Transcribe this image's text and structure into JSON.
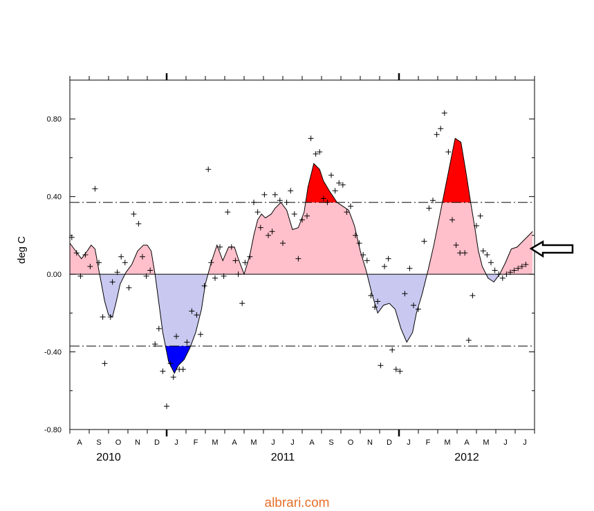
{
  "chart_data": {
    "type": "area",
    "ylabel": "deg C",
    "ylim": [
      -0.8,
      1.0
    ],
    "ytick_values": [
      -0.8,
      -0.4,
      0.0,
      0.4,
      0.8
    ],
    "ytick_labels": [
      "-0.80",
      "-0.40",
      "0.00",
      "0.40",
      "0.80"
    ],
    "x_unit": "month",
    "xlim": [
      0,
      24
    ],
    "months": [
      "A",
      "S",
      "O",
      "N",
      "D",
      "J",
      "F",
      "M",
      "A",
      "M",
      "J",
      "J",
      "A",
      "S",
      "O",
      "N",
      "D",
      "J",
      "F",
      "M",
      "A",
      "M",
      "J",
      "J"
    ],
    "years": [
      {
        "label": "2010",
        "at": 2.0
      },
      {
        "label": "2011",
        "at": 11.0
      },
      {
        "label": "2012",
        "at": 20.5
      }
    ],
    "thresholds": [
      0.37,
      -0.37
    ],
    "grid": false,
    "colors": {
      "warm_fill": "#ffc0cb",
      "cool_fill": "#c8c8f0",
      "strong_warm": "#ff0000",
      "strong_cool": "#0000ff",
      "line": "#000000"
    },
    "smoothed_series": {
      "x": [
        0.0,
        0.3,
        0.6,
        0.9,
        1.1,
        1.3,
        1.5,
        1.8,
        2.0,
        2.2,
        2.4,
        2.6,
        2.9,
        3.2,
        3.5,
        3.8,
        4.0,
        4.2,
        4.4,
        4.6,
        4.8,
        5.1,
        5.4,
        5.6,
        5.9,
        6.2,
        6.5,
        6.8,
        7.0,
        7.3,
        7.6,
        7.9,
        8.2,
        8.5,
        8.7,
        9.0,
        9.3,
        9.5,
        9.7,
        9.9,
        10.1,
        10.4,
        10.6,
        10.9,
        11.2,
        11.5,
        11.8,
        12.1,
        12.3,
        12.6,
        12.9,
        13.1,
        13.4,
        13.6,
        13.8,
        14.1,
        14.4,
        14.7,
        15.0,
        15.3,
        15.6,
        15.9,
        16.2,
        16.5,
        16.8,
        17.1,
        17.4,
        17.7,
        17.9,
        18.2,
        18.5,
        18.8,
        19.1,
        19.4,
        19.7,
        19.9,
        20.2,
        20.5,
        20.7,
        20.9,
        21.1,
        21.3,
        21.6,
        21.9,
        22.2,
        22.5,
        22.8,
        23.1,
        23.3,
        23.5,
        23.7,
        23.9
      ],
      "y": [
        0.16,
        0.12,
        0.08,
        0.12,
        0.15,
        0.13,
        0.02,
        -0.14,
        -0.21,
        -0.22,
        -0.14,
        -0.05,
        0.01,
        0.05,
        0.12,
        0.15,
        0.15,
        0.12,
        0.0,
        -0.15,
        -0.3,
        -0.45,
        -0.51,
        -0.47,
        -0.44,
        -0.38,
        -0.3,
        -0.18,
        -0.05,
        0.06,
        0.15,
        0.07,
        0.14,
        0.14,
        0.08,
        0.0,
        0.1,
        0.2,
        0.28,
        0.31,
        0.29,
        0.31,
        0.34,
        0.37,
        0.33,
        0.23,
        0.24,
        0.32,
        0.45,
        0.57,
        0.54,
        0.48,
        0.43,
        0.4,
        0.37,
        0.35,
        0.33,
        0.25,
        0.12,
        0.02,
        -0.1,
        -0.2,
        -0.16,
        -0.15,
        -0.18,
        -0.28,
        -0.35,
        -0.3,
        -0.2,
        -0.1,
        0.02,
        0.15,
        0.3,
        0.45,
        0.6,
        0.7,
        0.68,
        0.5,
        0.37,
        0.25,
        0.12,
        0.04,
        -0.02,
        -0.04,
        0.0,
        0.06,
        0.13,
        0.14,
        0.16,
        0.18,
        0.2,
        0.22
      ]
    },
    "monthly_points": {
      "x": [
        0.1,
        0.35,
        0.55,
        0.8,
        1.05,
        1.3,
        1.5,
        1.7,
        1.8,
        2.1,
        2.2,
        2.45,
        2.65,
        2.85,
        3.05,
        3.3,
        3.55,
        3.75,
        3.95,
        4.15,
        4.4,
        4.6,
        4.8,
        5.0,
        5.2,
        5.35,
        5.5,
        5.65,
        5.85,
        6.05,
        6.3,
        6.55,
        6.75,
        6.95,
        7.15,
        7.3,
        7.5,
        7.75,
        7.95,
        8.15,
        8.35,
        8.55,
        8.7,
        8.9,
        9.05,
        9.3,
        9.5,
        9.7,
        9.85,
        10.05,
        10.25,
        10.45,
        10.6,
        10.85,
        11.0,
        11.2,
        11.4,
        11.6,
        11.8,
        12.0,
        12.25,
        12.45,
        12.7,
        12.9,
        13.1,
        13.3,
        13.5,
        13.7,
        13.9,
        14.1,
        14.3,
        14.5,
        14.75,
        14.95,
        15.15,
        15.35,
        15.55,
        15.75,
        15.9,
        16.05,
        16.25,
        16.45,
        16.65,
        16.85,
        17.05,
        17.3,
        17.55,
        17.75,
        18.0,
        18.3,
        18.55,
        18.75,
        18.95,
        19.15,
        19.35,
        19.55,
        19.75,
        19.95,
        20.15,
        20.4,
        20.6,
        20.8,
        21.0,
        21.2,
        21.35,
        21.55,
        21.75,
        21.95,
        22.15,
        22.35,
        22.55,
        22.75,
        22.95,
        23.15,
        23.35,
        23.55
      ],
      "y": [
        0.19,
        0.11,
        -0.01,
        0.1,
        0.04,
        0.44,
        0.06,
        -0.22,
        -0.46,
        -0.22,
        -0.04,
        0.01,
        0.09,
        0.06,
        -0.07,
        0.31,
        0.26,
        0.09,
        -0.01,
        0.02,
        -0.36,
        -0.28,
        -0.5,
        -0.68,
        -0.46,
        -0.53,
        -0.32,
        -0.49,
        -0.49,
        -0.35,
        -0.19,
        -0.21,
        -0.31,
        -0.06,
        0.54,
        0.06,
        -0.02,
        0.14,
        -0.01,
        0.32,
        0.14,
        0.07,
        0.0,
        -0.15,
        0.06,
        0.09,
        0.37,
        0.32,
        0.24,
        0.41,
        0.2,
        0.22,
        0.41,
        0.38,
        0.16,
        0.37,
        0.43,
        0.31,
        0.08,
        0.28,
        0.3,
        0.7,
        0.62,
        0.63,
        0.39,
        0.37,
        0.51,
        0.43,
        0.47,
        0.46,
        0.32,
        0.35,
        0.2,
        0.16,
        0.1,
        0.07,
        -0.11,
        -0.17,
        -0.14,
        -0.47,
        0.04,
        0.08,
        -0.39,
        -0.49,
        -0.5,
        -0.1,
        0.03,
        -0.16,
        -0.18,
        0.17,
        0.34,
        0.38,
        0.72,
        0.75,
        0.83,
        0.63,
        0.28,
        0.15,
        0.11,
        0.11,
        -0.34,
        -0.11,
        0.25,
        0.3,
        0.12,
        0.1,
        0.06,
        0.02,
        0.0,
        -0.02,
        0.0,
        0.01,
        0.02,
        0.03,
        0.04,
        0.05
      ]
    }
  },
  "watermark": "albrari.com"
}
